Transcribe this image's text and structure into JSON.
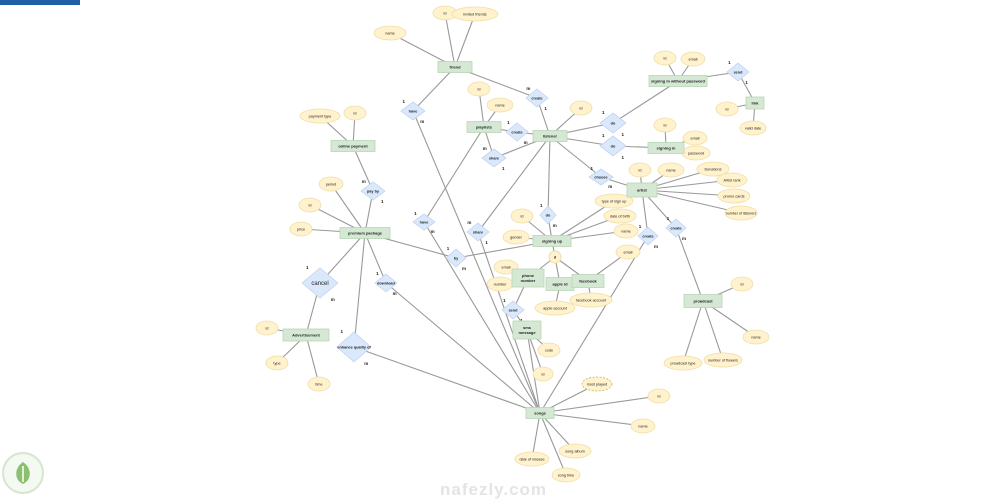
{
  "watermark": "nafezly.com",
  "colors": {
    "entity": "#d5e8d4",
    "relationship": "#dae8fc",
    "attribute": "#fff2cc",
    "edge": "#999999",
    "top_bar": "#1f5fa8"
  },
  "entities": {
    "friend": "friend",
    "playlists": "playlists",
    "listener": "listener",
    "online_payment": "online payment",
    "premium_package": "premium package",
    "signing_up": "signing up",
    "phone_number": "phone number",
    "apple_id": "apple id",
    "facebook": "facebook",
    "sms_message": "sms message",
    "advertisement": "Advertisement",
    "songs": "songs",
    "artist": "artist",
    "signing_in_without_password": "signing in without password",
    "link": "link",
    "signing_in": "signing in",
    "proadcast": "proadcast"
  },
  "relationships": {
    "have_friend": {
      "label": "have",
      "cards": [
        "1",
        "m"
      ]
    },
    "create_friend": {
      "label": "create",
      "cards": [
        "m",
        "1"
      ]
    },
    "create_playlist": {
      "label": "create",
      "cards": [
        "1",
        "m"
      ]
    },
    "share_playlist": {
      "label": "share",
      "cards": [
        "m",
        "1"
      ]
    },
    "do_pwless": {
      "label": "do",
      "cards": [
        "1",
        "1"
      ]
    },
    "do_signin": {
      "label": "do",
      "cards": [
        "1",
        "1"
      ]
    },
    "send_link": {
      "label": "send",
      "cards": [
        "1",
        "1"
      ]
    },
    "choose": {
      "label": "choose",
      "cards": [
        "1",
        "m"
      ]
    },
    "pay_by": {
      "label": "pay by",
      "cards": [
        "m",
        "1"
      ]
    },
    "have_playlist": {
      "label": "have",
      "cards": [
        "1",
        "m"
      ]
    },
    "share_song": {
      "label": "share",
      "cards": [
        "m",
        "1"
      ]
    },
    "do_signup": {
      "label": "do",
      "cards": [
        "1",
        "m"
      ]
    },
    "by": {
      "label": "by",
      "cards": [
        "1",
        "m"
      ]
    },
    "create_song": {
      "label": "create",
      "cards": [
        "1",
        "m"
      ]
    },
    "create_proadcast": {
      "label": "create",
      "cards": [
        "1",
        "m"
      ]
    },
    "cancel": {
      "label": "cancel",
      "cards": [
        "1",
        "m"
      ]
    },
    "download": {
      "label": "download",
      "cards": [
        "1",
        "m"
      ]
    },
    "enhance": {
      "label": "enhance quality of",
      "cards": [
        "1",
        "m"
      ]
    },
    "send_sms": {
      "label": "send",
      "cards": [
        "1",
        "1"
      ]
    },
    "disjoint": {
      "label": "d",
      "cards": []
    }
  },
  "attributes": {
    "f_id": "id",
    "f_inv": "invited friends",
    "f_name": "name",
    "p_id": "id",
    "p_name": "name",
    "l_id": "id",
    "op_type": "payment type",
    "op_id": "id",
    "pp_period": "period",
    "pp_id": "id",
    "pp_price": "price",
    "sp_id": "id",
    "sp_email": "email",
    "lk_id": "id",
    "lk_date": "valid date",
    "si_id": "id",
    "si_email": "email",
    "si_pw": "password",
    "a_id": "id",
    "a_name": "name",
    "a_don": "Donations",
    "a_rank": "Artist rank",
    "a_promo": "promo cards",
    "a_listeners": "number of listeners",
    "su_id": "id",
    "su_gender": "gender",
    "su_type": "type of sign up",
    "su_dob": "date of birth",
    "su_name": "name",
    "pn_email": "email",
    "pn_number": "number",
    "ai_acc": "apple account",
    "fb_email": "email",
    "fb_acc": "facebook account",
    "sms_code": "code",
    "sms_id": "id",
    "pr_id": "id",
    "pr_name": "name",
    "pr_type": "proadcast type",
    "pr_flowers": "number of flowers",
    "ad_id": "id",
    "ad_type": "type",
    "ad_time": "time",
    "s_most": "most played",
    "s_id": "id",
    "s_name": "name",
    "s_album": "song album",
    "s_date": "date of release",
    "s_time": "song time"
  }
}
